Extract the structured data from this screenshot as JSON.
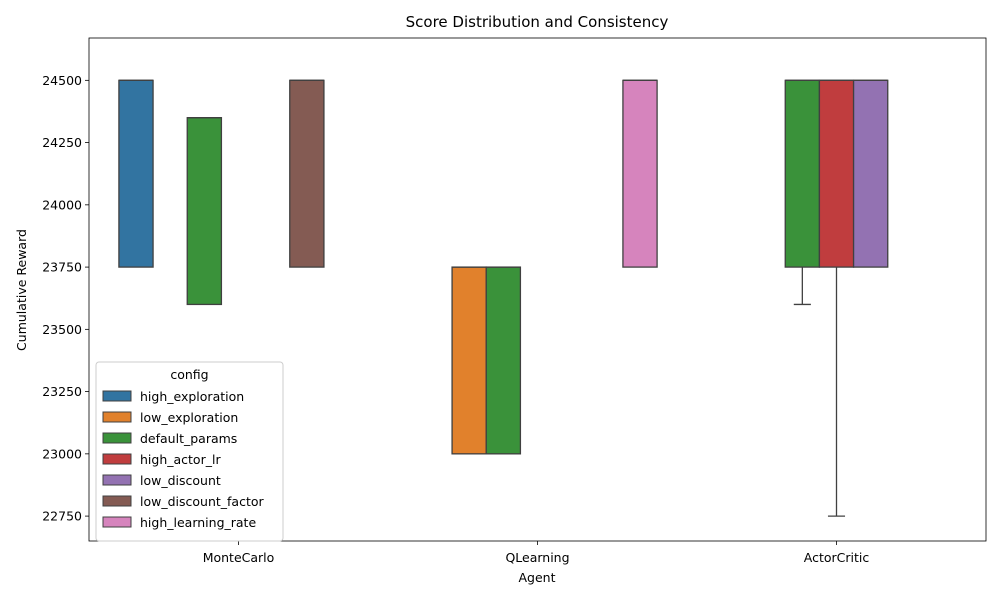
{
  "chart_data": {
    "type": "box",
    "title": "Score Distribution and Consistency",
    "xlabel": "Agent",
    "ylabel": "Cumulative Reward",
    "categories": [
      "MonteCarlo",
      "QLearning",
      "ActorCritic"
    ],
    "ylim": [
      22650,
      24670
    ],
    "yticks": [
      22750,
      23000,
      23250,
      23500,
      23750,
      24000,
      24250,
      24500
    ],
    "grid": false,
    "legend": {
      "title": "config",
      "placement": "lower-left",
      "entries": [
        {
          "name": "high_exploration",
          "color": "#3274a1"
        },
        {
          "name": "low_exploration",
          "color": "#e1812c"
        },
        {
          "name": "default_params",
          "color": "#3a923a"
        },
        {
          "name": "high_actor_lr",
          "color": "#c03d3e"
        },
        {
          "name": "low_discount",
          "color": "#9372b2"
        },
        {
          "name": "low_discount_factor",
          "color": "#845b53"
        },
        {
          "name": "high_learning_rate",
          "color": "#d684bd"
        }
      ]
    },
    "boxes": [
      {
        "category": "MonteCarlo",
        "config": "high_exploration",
        "whisker_low": 23750,
        "q1": 23750,
        "median": 24500,
        "q3": 24500,
        "whisker_high": 24500
      },
      {
        "category": "MonteCarlo",
        "config": "default_params",
        "whisker_low": 23600,
        "q1": 23600,
        "median": 24350,
        "q3": 24350,
        "whisker_high": 24350
      },
      {
        "category": "MonteCarlo",
        "config": "low_discount_factor",
        "whisker_low": 23750,
        "q1": 23750,
        "median": 24500,
        "q3": 24500,
        "whisker_high": 24500
      },
      {
        "category": "QLearning",
        "config": "low_exploration",
        "whisker_low": 23000,
        "q1": 23000,
        "median": 23750,
        "q3": 23750,
        "whisker_high": 23750
      },
      {
        "category": "QLearning",
        "config": "default_params",
        "whisker_low": 23000,
        "q1": 23000,
        "median": 23750,
        "q3": 23750,
        "whisker_high": 23750
      },
      {
        "category": "QLearning",
        "config": "high_learning_rate",
        "whisker_low": 23750,
        "q1": 23750,
        "median": 24500,
        "q3": 24500,
        "whisker_high": 24500
      },
      {
        "category": "ActorCritic",
        "config": "default_params",
        "whisker_low": 23600,
        "q1": 23750,
        "median": 24500,
        "q3": 24500,
        "whisker_high": 24500
      },
      {
        "category": "ActorCritic",
        "config": "high_actor_lr",
        "whisker_low": 22750,
        "q1": 23750,
        "median": 24500,
        "q3": 24500,
        "whisker_high": 24500
      },
      {
        "category": "ActorCritic",
        "config": "low_discount",
        "whisker_low": 23750,
        "q1": 23750,
        "median": 24500,
        "q3": 24500,
        "whisker_high": 24500
      }
    ]
  }
}
